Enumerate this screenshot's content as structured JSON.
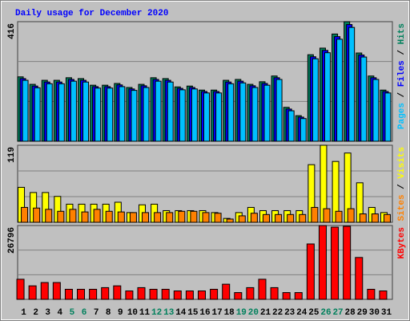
{
  "chart_data": [
    {
      "type": "bar",
      "title": "Daily usage for December 2020",
      "ylim": [
        0,
        416
      ],
      "yticks": [
        416
      ],
      "legend_separator": " / ",
      "series": [
        {
          "name": "Hits",
          "color": "#00805c",
          "values": [
            224,
            198,
            212,
            212,
            221,
            218,
            195,
            195,
            201,
            187,
            198,
            221,
            218,
            189,
            192,
            178,
            178,
            212,
            215,
            198,
            207,
            227,
            118,
            89,
            301,
            324,
            373,
            416,
            307,
            227,
            178
          ]
        },
        {
          "name": "Files",
          "color": "#0000ff",
          "values": [
            218,
            192,
            206,
            206,
            215,
            212,
            190,
            190,
            196,
            182,
            193,
            215,
            212,
            184,
            187,
            173,
            173,
            206,
            209,
            193,
            201,
            221,
            112,
            84,
            294,
            316,
            364,
            406,
            300,
            221,
            173
          ]
        },
        {
          "name": "Pages",
          "color": "#00c0ff",
          "values": [
            212,
            186,
            200,
            200,
            209,
            206,
            185,
            185,
            190,
            177,
            187,
            209,
            206,
            179,
            182,
            168,
            168,
            200,
            203,
            187,
            195,
            215,
            106,
            79,
            287,
            308,
            355,
            396,
            293,
            215,
            168
          ]
        }
      ]
    },
    {
      "type": "bar",
      "ylim": [
        0,
        119
      ],
      "yticks": [
        119
      ],
      "legend_separator": " / ",
      "series": [
        {
          "name": "Visits",
          "color": "#ffff00",
          "values": [
            54,
            46,
            46,
            40,
            28,
            28,
            28,
            28,
            31,
            15,
            27,
            28,
            18,
            18,
            18,
            18,
            15,
            6,
            15,
            23,
            18,
            18,
            18,
            18,
            89,
            119,
            94,
            107,
            61,
            23,
            15
          ]
        },
        {
          "name": "Sites",
          "color": "#ff8000",
          "values": [
            23,
            22,
            20,
            17,
            20,
            16,
            20,
            17,
            16,
            15,
            15,
            15,
            15,
            17,
            17,
            15,
            14,
            5,
            10,
            14,
            12,
            12,
            12,
            12,
            23,
            21,
            17,
            21,
            13,
            13,
            12
          ]
        }
      ]
    },
    {
      "type": "bar",
      "ylim": [
        0,
        26796
      ],
      "yticks": [
        26796
      ],
      "categories": [
        "1",
        "2",
        "3",
        "4",
        "5",
        "6",
        "7",
        "8",
        "9",
        "10",
        "11",
        "12",
        "13",
        "14",
        "15",
        "16",
        "17",
        "18",
        "19",
        "20",
        "21",
        "22",
        "23",
        "24",
        "25",
        "26",
        "27",
        "28",
        "29",
        "30",
        "31"
      ],
      "category_colors": [
        "#000000",
        "#000000",
        "#000000",
        "#000000",
        "#00805c",
        "#00805c",
        "#000000",
        "#000000",
        "#000000",
        "#000000",
        "#000000",
        "#00805c",
        "#00805c",
        "#000000",
        "#000000",
        "#000000",
        "#000000",
        "#000000",
        "#00805c",
        "#00805c",
        "#000000",
        "#000000",
        "#000000",
        "#000000",
        "#000000",
        "#00805c",
        "#00805c",
        "#000000",
        "#000000",
        "#000000",
        "#000000"
      ],
      "series": [
        {
          "name": "KBytes",
          "color": "#ff0000",
          "values": [
            7300,
            4900,
            6100,
            6100,
            3650,
            3650,
            3650,
            4250,
            4900,
            3050,
            4250,
            3650,
            3650,
            3050,
            3050,
            3050,
            3650,
            5500,
            2450,
            4250,
            7300,
            4250,
            2450,
            2450,
            20100,
            26796,
            26200,
            26500,
            15200,
            3650,
            3050
          ]
        }
      ]
    }
  ]
}
